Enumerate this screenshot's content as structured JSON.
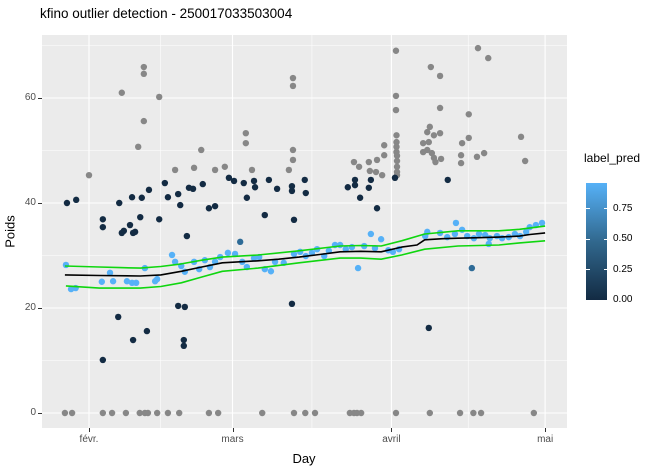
{
  "title": "kfino outlier detection - 250017033503004",
  "axes": {
    "x_label": "Day",
    "y_label": "Poids",
    "y_ticks": [
      {
        "label": "0",
        "value": 0
      },
      {
        "label": "20",
        "value": 20
      },
      {
        "label": "40",
        "value": 40
      },
      {
        "label": "60",
        "value": 60
      }
    ],
    "y_minor": [
      10,
      30,
      50,
      70
    ],
    "x_ticks": [
      {
        "label": "févr.",
        "day": 32
      },
      {
        "label": "mars",
        "day": 60
      },
      {
        "label": "avril",
        "day": 91
      },
      {
        "label": "mai",
        "day": 121
      }
    ],
    "x_minor": [
      46,
      75.5,
      106
    ]
  },
  "legend": {
    "title": "label_pred",
    "vmax": 0.96,
    "ticks": [
      {
        "label": "0.75",
        "value": 0.75
      },
      {
        "label": "0.50",
        "value": 0.5
      },
      {
        "label": "0.25",
        "value": 0.25
      },
      {
        "label": "0.00",
        "value": 0.0
      }
    ],
    "gradient_top": "#56B1F7",
    "gradient_mid": "#31688E",
    "gradient_bottom": "#132B43"
  },
  "colors": {
    "panel_bg": "#EBEBEB",
    "gridline": "#FFFFFF",
    "outlier_gray": "#878787",
    "pred_low_dark": "#132B43",
    "pred_high_light": "#56B1F7",
    "pred_mid": "#2E6B97",
    "bound_green": "#0FD60F",
    "prediction_black": "#000000",
    "axis_text": "#4D4D4D"
  },
  "chart_data": {
    "type": "scatter",
    "title": "kfino outlier detection - 250017033503004",
    "xlabel": "Day",
    "ylabel": "Poids",
    "x_unit": "day_of_year",
    "x_range_days": [
      22.8,
      125.3
    ],
    "ylim": [
      -3,
      72
    ],
    "grid": true,
    "legend_position": "right",
    "series": [
      {
        "name": "outlier_gray",
        "color": "#878787",
        "points": [
          [
            32.0,
            45.3
          ],
          [
            38.4,
            61.0
          ],
          [
            41.6,
            50.7
          ],
          [
            42.7,
            65.9
          ],
          [
            42.7,
            64.6
          ],
          [
            42.7,
            55.6
          ],
          [
            45.7,
            60.2
          ],
          [
            48.8,
            46.3
          ],
          [
            52.5,
            46.7
          ],
          [
            53.9,
            50.1
          ],
          [
            56.6,
            46.3
          ],
          [
            58.5,
            46.9
          ],
          [
            62.6,
            53.3
          ],
          [
            62.6,
            51.4
          ],
          [
            63.8,
            46.3
          ],
          [
            71.0,
            46.3
          ],
          [
            71.8,
            50.1
          ],
          [
            71.8,
            48.2
          ],
          [
            71.8,
            63.8
          ],
          [
            71.8,
            62.3
          ],
          [
            83.7,
            47.8
          ],
          [
            84.7,
            46.9
          ],
          [
            86.6,
            47.8
          ],
          [
            88.2,
            48.2
          ],
          [
            89.6,
            49.1
          ],
          [
            89.6,
            51.0
          ],
          [
            86.8,
            46.1
          ],
          [
            88.0,
            45.9
          ],
          [
            89.2,
            45.3
          ],
          [
            91.9,
            69.0
          ],
          [
            91.9,
            60.4
          ],
          [
            91.9,
            57.7
          ],
          [
            92.0,
            52.9
          ],
          [
            92.0,
            51.6
          ],
          [
            92.0,
            50.7
          ],
          [
            92.0,
            49.7
          ],
          [
            92.1,
            49.0
          ],
          [
            92.1,
            48.0
          ],
          [
            92.1,
            46.9
          ],
          [
            92.1,
            45.9
          ],
          [
            92.1,
            45.3
          ],
          [
            100.5,
            58.1
          ],
          [
            106.1,
            56.9
          ],
          [
            98.5,
            54.5
          ],
          [
            98.0,
            53.5
          ],
          [
            99.3,
            52.9
          ],
          [
            100.5,
            53.3
          ],
          [
            97.2,
            51.4
          ],
          [
            98.3,
            51.6
          ],
          [
            98.0,
            50.1
          ],
          [
            97.2,
            49.7
          ],
          [
            98.9,
            49.5
          ],
          [
            99.3,
            48.6
          ],
          [
            99.6,
            47.8
          ],
          [
            100.7,
            48.4
          ],
          [
            104.8,
            51.4
          ],
          [
            106.1,
            52.4
          ],
          [
            104.6,
            49.1
          ],
          [
            104.6,
            47.6
          ],
          [
            107.7,
            48.8
          ],
          [
            109.1,
            49.5
          ],
          [
            98.7,
            65.9
          ],
          [
            100.5,
            64.2
          ],
          [
            107.9,
            69.5
          ],
          [
            109.9,
            67.6
          ],
          [
            116.3,
            52.6
          ],
          [
            117.1,
            48.0
          ],
          [
            27.3,
            0
          ],
          [
            28.7,
            0
          ],
          [
            34.7,
            0
          ],
          [
            36.5,
            0
          ],
          [
            39.2,
            0
          ],
          [
            41.9,
            0
          ],
          [
            42.9,
            0
          ],
          [
            43.5,
            0
          ],
          [
            45.3,
            0
          ],
          [
            47.4,
            0
          ],
          [
            49.6,
            0
          ],
          [
            55.4,
            0
          ],
          [
            57.2,
            0
          ],
          [
            65.8,
            0
          ],
          [
            72.0,
            0
          ],
          [
            74.2,
            0
          ],
          [
            76.1,
            0
          ],
          [
            82.9,
            0
          ],
          [
            83.7,
            0
          ],
          [
            84.3,
            0
          ],
          [
            85.1,
            0
          ],
          [
            91.9,
            0
          ],
          [
            98.5,
            0
          ],
          [
            104.4,
            0
          ],
          [
            107.0,
            0
          ],
          [
            108.5,
            0
          ],
          [
            118.8,
            0
          ]
        ]
      },
      {
        "name": "label_pred_0.00_dark",
        "color": "#132B43",
        "points": [
          [
            27.7,
            40.0
          ],
          [
            29.5,
            40.6
          ],
          [
            34.7,
            36.9
          ],
          [
            34.7,
            35.4
          ],
          [
            37.9,
            40.0
          ],
          [
            38.8,
            34.7
          ],
          [
            40.0,
            35.8
          ],
          [
            40.4,
            41.1
          ],
          [
            41.0,
            34.5
          ],
          [
            42.0,
            37.3
          ],
          [
            42.3,
            41.0
          ],
          [
            43.7,
            42.5
          ],
          [
            45.7,
            36.9
          ],
          [
            46.8,
            43.8
          ],
          [
            47.4,
            41.1
          ],
          [
            49.4,
            41.7
          ],
          [
            49.8,
            39.6
          ],
          [
            51.5,
            42.9
          ],
          [
            52.3,
            42.7
          ],
          [
            54.2,
            43.6
          ],
          [
            55.4,
            39.0
          ],
          [
            56.6,
            39.4
          ],
          [
            59.3,
            44.8
          ],
          [
            60.3,
            44.2
          ],
          [
            62.2,
            43.8
          ],
          [
            64.2,
            44.2
          ],
          [
            64.4,
            43.0
          ],
          [
            67.1,
            44.4
          ],
          [
            68.7,
            42.7
          ],
          [
            71.6,
            43.2
          ],
          [
            71.6,
            42.3
          ],
          [
            74.1,
            44.4
          ],
          [
            74.3,
            41.9
          ],
          [
            62.8,
            41.0
          ],
          [
            66.3,
            37.7
          ],
          [
            72.0,
            36.8
          ],
          [
            82.5,
            43.0
          ],
          [
            83.9,
            44.4
          ],
          [
            83.9,
            43.4
          ],
          [
            84.9,
            41.0
          ],
          [
            86.6,
            42.9
          ],
          [
            87.0,
            44.4
          ],
          [
            88.2,
            39.0
          ],
          [
            91.7,
            44.8
          ],
          [
            102.0,
            44.4
          ],
          [
            38.4,
            34.3
          ],
          [
            40.6,
            34.3
          ],
          [
            51.1,
            33.7
          ],
          [
            34.7,
            10.1
          ],
          [
            37.7,
            18.3
          ],
          [
            40.6,
            13.9
          ],
          [
            43.3,
            15.6
          ],
          [
            49.4,
            20.4
          ],
          [
            50.7,
            20.2
          ],
          [
            50.5,
            13.9
          ],
          [
            50.5,
            12.8
          ],
          [
            71.6,
            20.8
          ],
          [
            98.3,
            16.2
          ]
        ]
      },
      {
        "name": "label_pred_high_light",
        "color": "#56B1F7",
        "points": [
          [
            27.5,
            28.2
          ],
          [
            28.5,
            23.6
          ],
          [
            29.4,
            23.8
          ],
          [
            34.5,
            25.0
          ],
          [
            36.1,
            26.7
          ],
          [
            36.7,
            25.1
          ],
          [
            39.4,
            25.1
          ],
          [
            40.4,
            24.8
          ],
          [
            41.2,
            24.8
          ],
          [
            42.9,
            27.6
          ],
          [
            44.9,
            25.1
          ],
          [
            45.3,
            25.5
          ],
          [
            48.2,
            30.1
          ],
          [
            48.8,
            28.8
          ],
          [
            50.0,
            28.0
          ],
          [
            50.7,
            26.9
          ],
          [
            52.5,
            28.8
          ],
          [
            53.5,
            27.4
          ],
          [
            54.6,
            29.1
          ],
          [
            55.6,
            27.8
          ],
          [
            56.6,
            28.8
          ],
          [
            57.6,
            29.7
          ],
          [
            59.1,
            30.5
          ],
          [
            60.5,
            30.3
          ],
          [
            61.9,
            28.8
          ],
          [
            62.8,
            27.8
          ],
          [
            64.2,
            29.5
          ],
          [
            65.2,
            29.7
          ],
          [
            66.3,
            27.4
          ],
          [
            67.5,
            27.0
          ],
          [
            68.3,
            28.8
          ],
          [
            70.0,
            28.6
          ],
          [
            72.0,
            30.3
          ],
          [
            73.2,
            30.7
          ],
          [
            74.3,
            29.9
          ],
          [
            75.5,
            30.5
          ],
          [
            76.5,
            31.2
          ],
          [
            77.9,
            29.9
          ],
          [
            78.8,
            30.9
          ],
          [
            80.0,
            32.0
          ],
          [
            81.0,
            32.0
          ],
          [
            82.1,
            31.2
          ],
          [
            83.3,
            31.6
          ],
          [
            84.5,
            27.6
          ],
          [
            85.7,
            31.8
          ],
          [
            87.0,
            34.1
          ],
          [
            87.8,
            31.4
          ],
          [
            89.0,
            33.1
          ],
          [
            90.4,
            31.0
          ],
          [
            91.3,
            30.7
          ],
          [
            92.5,
            31.2
          ],
          [
            97.6,
            33.7
          ],
          [
            98.0,
            34.5
          ],
          [
            100.5,
            34.3
          ],
          [
            101.9,
            33.5
          ],
          [
            103.4,
            34.1
          ],
          [
            103.6,
            36.2
          ],
          [
            104.8,
            34.9
          ],
          [
            105.8,
            33.7
          ],
          [
            107.1,
            33.3
          ],
          [
            108.1,
            34.1
          ],
          [
            109.3,
            33.9
          ],
          [
            110.0,
            32.2
          ],
          [
            110.2,
            33.3
          ],
          [
            111.6,
            33.7
          ],
          [
            112.6,
            33.3
          ],
          [
            113.9,
            33.5
          ],
          [
            115.1,
            34.1
          ],
          [
            116.1,
            33.7
          ],
          [
            117.3,
            34.5
          ],
          [
            118.0,
            35.4
          ],
          [
            119.2,
            35.8
          ],
          [
            120.4,
            36.2
          ]
        ]
      },
      {
        "name": "label_pred_mid",
        "color": "#2E6B97",
        "points": [
          [
            61.5,
            32.6
          ],
          [
            106.7,
            27.6
          ]
        ]
      }
    ],
    "lines": [
      {
        "name": "upper_bound",
        "color": "#0FD60F",
        "width": 1.6,
        "points": [
          [
            27.3,
            28.0
          ],
          [
            34,
            27.8
          ],
          [
            38,
            27.7
          ],
          [
            42,
            27.6
          ],
          [
            46,
            27.9
          ],
          [
            50,
            28.4
          ],
          [
            54,
            29.1
          ],
          [
            58,
            29.7
          ],
          [
            65,
            30.1
          ],
          [
            73,
            30.9
          ],
          [
            81,
            31.8
          ],
          [
            85,
            31.9
          ],
          [
            89,
            31.8
          ],
          [
            93,
            32.8
          ],
          [
            97.5,
            34.1
          ],
          [
            104,
            34.7
          ],
          [
            112,
            34.7
          ],
          [
            116,
            35.0
          ],
          [
            121,
            35.6
          ]
        ]
      },
      {
        "name": "lower_bound",
        "color": "#0FD60F",
        "width": 1.6,
        "points": [
          [
            27.5,
            24.2
          ],
          [
            34,
            23.8
          ],
          [
            42,
            23.8
          ],
          [
            46,
            24.1
          ],
          [
            50,
            24.8
          ],
          [
            54,
            25.9
          ],
          [
            58,
            27.0
          ],
          [
            65,
            27.6
          ],
          [
            73,
            28.6
          ],
          [
            81,
            29.5
          ],
          [
            85,
            29.5
          ],
          [
            89,
            29.3
          ],
          [
            93,
            30.1
          ],
          [
            97.5,
            31.2
          ],
          [
            104,
            31.8
          ],
          [
            112,
            32.0
          ],
          [
            116,
            32.4
          ],
          [
            121,
            32.8
          ]
        ]
      },
      {
        "name": "prediction",
        "color": "#000000",
        "width": 1.6,
        "points": [
          [
            27.3,
            26.3
          ],
          [
            34,
            26.2
          ],
          [
            42,
            26.1
          ],
          [
            46,
            26.3
          ],
          [
            50,
            27.0
          ],
          [
            54,
            27.8
          ],
          [
            58,
            28.6
          ],
          [
            65,
            29.0
          ],
          [
            69,
            29.3
          ],
          [
            73,
            29.7
          ],
          [
            77,
            30.2
          ],
          [
            81,
            30.7
          ],
          [
            85,
            30.8
          ],
          [
            89,
            30.7
          ],
          [
            93,
            31.6
          ],
          [
            96,
            32.0
          ],
          [
            97.5,
            33.0
          ],
          [
            101,
            33.2
          ],
          [
            104,
            33.3
          ],
          [
            108,
            33.4
          ],
          [
            112,
            33.5
          ],
          [
            116,
            33.7
          ],
          [
            118,
            34.0
          ],
          [
            121,
            34.3
          ]
        ]
      }
    ]
  }
}
